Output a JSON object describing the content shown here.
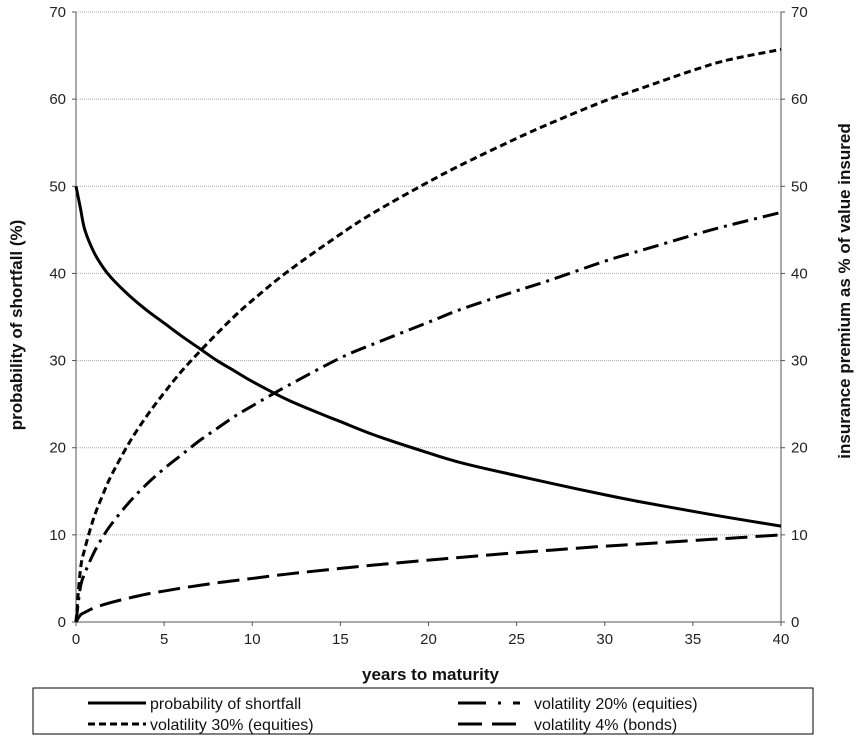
{
  "chart_data": {
    "type": "line",
    "xlabel": "years to maturity",
    "ylabel": "probability of shortfall (%)",
    "ylabel_right": "insurance premium as % of value insured",
    "xlim": [
      0,
      40
    ],
    "ylim": [
      0,
      70
    ],
    "ylim_right": [
      0,
      70
    ],
    "x_ticks": [
      "0",
      "5",
      "10",
      "15",
      "20",
      "25",
      "30",
      "35",
      "40"
    ],
    "y_ticks": [
      "0",
      "10",
      "20",
      "30",
      "40",
      "50",
      "60",
      "70"
    ],
    "y_ticks_right": [
      "0",
      "10",
      "20",
      "30",
      "40",
      "50",
      "60",
      "70"
    ],
    "grid": "horizontal",
    "legend_position": "bottom",
    "series": [
      {
        "name": "probability of shortfall",
        "style": "solid",
        "x": [
          0,
          0.25,
          0.5,
          1,
          1.5,
          2,
          3,
          4,
          5,
          6,
          7,
          8,
          9,
          10,
          12,
          14,
          15,
          17,
          20,
          22,
          25,
          27,
          30,
          32,
          35,
          37,
          40
        ],
        "y": [
          50,
          47.5,
          45,
          42.5,
          40.8,
          39.5,
          37.5,
          35.8,
          34.3,
          32.8,
          31.4,
          30,
          28.8,
          27.6,
          25.5,
          23.8,
          23,
          21.4,
          19.4,
          18.2,
          16.8,
          15.9,
          14.6,
          13.8,
          12.7,
          12,
          11
        ]
      },
      {
        "name": "volatility 20% (equities)",
        "style": "dash-dot",
        "x": [
          0,
          0.25,
          0.5,
          1,
          1.5,
          2,
          3,
          4,
          5,
          6,
          7,
          8,
          9,
          10,
          12,
          15,
          17,
          20,
          22,
          25,
          27,
          30,
          32,
          35,
          37,
          40
        ],
        "y": [
          0,
          4,
          5.6,
          7.9,
          9.7,
          11.2,
          13.7,
          15.8,
          17.6,
          19.2,
          20.8,
          22.2,
          23.6,
          24.8,
          27.1,
          30.3,
          32,
          34.4,
          36,
          38,
          39.3,
          41.4,
          42.6,
          44.4,
          45.5,
          47
        ]
      },
      {
        "name": "volatility 30% (equities)",
        "style": "short-dash",
        "x": [
          0,
          0.25,
          0.5,
          1,
          1.5,
          2,
          3,
          4,
          5,
          6,
          7,
          8,
          9,
          10,
          12,
          15,
          17,
          20,
          22,
          25,
          27,
          30,
          32,
          35,
          37,
          40
        ],
        "y": [
          0,
          6,
          8.4,
          11.9,
          14.5,
          16.8,
          20.5,
          23.6,
          26.3,
          28.8,
          31,
          33.1,
          35.1,
          36.9,
          40.2,
          44.5,
          47.1,
          50.5,
          52.6,
          55.5,
          57.3,
          59.8,
          61.2,
          63.3,
          64.5,
          65.7
        ]
      },
      {
        "name": "volatility 4% (bonds)",
        "style": "long-dash",
        "x": [
          0,
          0.25,
          0.5,
          1,
          1.5,
          2,
          3,
          4,
          5,
          6,
          7,
          8,
          9,
          10,
          12,
          15,
          17,
          20,
          22,
          25,
          27,
          30,
          32,
          35,
          37,
          40
        ],
        "y": [
          0,
          0.8,
          1.1,
          1.6,
          1.95,
          2.25,
          2.75,
          3.2,
          3.55,
          3.9,
          4.2,
          4.5,
          4.75,
          5,
          5.5,
          6.15,
          6.55,
          7.1,
          7.45,
          7.95,
          8.25,
          8.7,
          8.95,
          9.35,
          9.6,
          10
        ]
      }
    ],
    "legend": {
      "rows": [
        [
          "probability of shortfall",
          "volatility 20% (equities)"
        ],
        [
          "volatility 30% (equities)",
          "volatility 4% (bonds)"
        ]
      ]
    }
  }
}
